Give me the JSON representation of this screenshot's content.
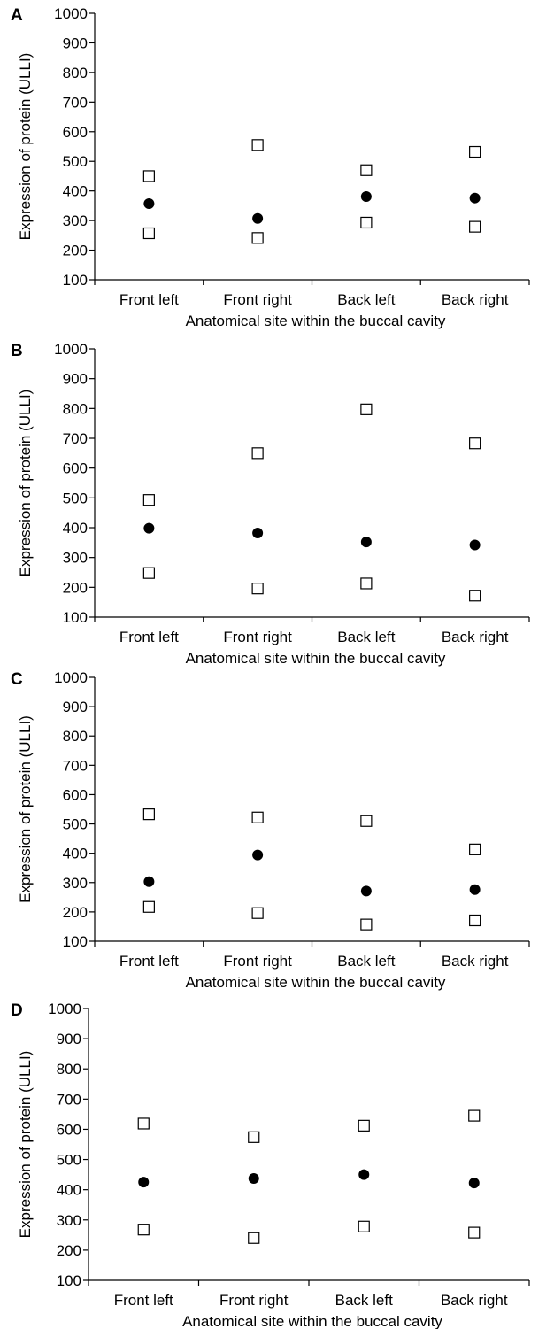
{
  "chart_data": [
    {
      "type": "scatter",
      "panel_label": "A",
      "categories": [
        "Front left",
        "Front right",
        "Back left",
        "Back right"
      ],
      "series": [
        {
          "marker": "open-square",
          "values": [
            450,
            555,
            470,
            532
          ]
        },
        {
          "marker": "filled-circle",
          "values": [
            357,
            307,
            381,
            376
          ]
        },
        {
          "marker": "open-square",
          "values": [
            257,
            241,
            293,
            279
          ]
        }
      ],
      "xlabel": "Anatomical site within the buccal cavity",
      "ylabel": "Expression of protein (ULLI)",
      "ylim": [
        100,
        1000
      ],
      "yticks": [
        100,
        200,
        300,
        400,
        500,
        600,
        700,
        800,
        900,
        1000
      ],
      "grid": false,
      "legend": "none"
    },
    {
      "type": "scatter",
      "panel_label": "B",
      "categories": [
        "Front left",
        "Front right",
        "Back left",
        "Back right"
      ],
      "series": [
        {
          "marker": "open-square",
          "values": [
            493,
            650,
            797,
            683
          ]
        },
        {
          "marker": "filled-circle",
          "values": [
            398,
            382,
            352,
            342
          ]
        },
        {
          "marker": "open-square",
          "values": [
            248,
            196,
            213,
            172
          ]
        }
      ],
      "xlabel": "Anatomical site within the buccal cavity",
      "ylabel": "Expression of protein (ULLI)",
      "ylim": [
        100,
        1000
      ],
      "yticks": [
        100,
        200,
        300,
        400,
        500,
        600,
        700,
        800,
        900,
        1000
      ],
      "grid": false,
      "legend": "none"
    },
    {
      "type": "scatter",
      "panel_label": "C",
      "categories": [
        "Front left",
        "Front right",
        "Back left",
        "Back right"
      ],
      "series": [
        {
          "marker": "open-square",
          "values": [
            533,
            522,
            510,
            413
          ]
        },
        {
          "marker": "filled-circle",
          "values": [
            303,
            394,
            271,
            276
          ]
        },
        {
          "marker": "open-square",
          "values": [
            217,
            196,
            157,
            171
          ]
        }
      ],
      "xlabel": "Anatomical site within the buccal cavity",
      "ylabel": "Expression of protein (ULLI)",
      "ylim": [
        100,
        1000
      ],
      "yticks": [
        100,
        200,
        300,
        400,
        500,
        600,
        700,
        800,
        900,
        1000
      ],
      "grid": false,
      "legend": "none"
    },
    {
      "type": "scatter",
      "panel_label": "D",
      "categories": [
        "Front left",
        "Front right",
        "Back left",
        "Back right"
      ],
      "series": [
        {
          "marker": "open-square",
          "values": [
            619,
            574,
            612,
            645
          ]
        },
        {
          "marker": "filled-circle",
          "values": [
            425,
            437,
            450,
            422
          ]
        },
        {
          "marker": "open-square",
          "values": [
            268,
            240,
            278,
            258
          ]
        }
      ],
      "xlabel": "Anatomical site within the buccal cavity",
      "ylabel": "Expression of protein (ULLI)",
      "ylim": [
        100,
        1000
      ],
      "yticks": [
        100,
        200,
        300,
        400,
        500,
        600,
        700,
        800,
        900,
        1000
      ],
      "grid": false,
      "legend": "none"
    }
  ]
}
